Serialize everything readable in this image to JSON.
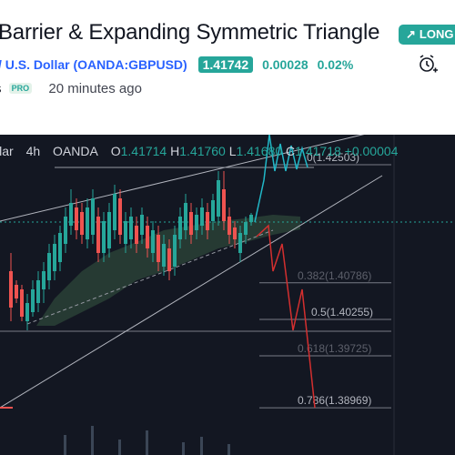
{
  "header": {
    "title": "Barrier & Expanding Symmetric Triangle",
    "badge": "LONG",
    "symbol_text": "/ U.S. Dollar",
    "symbol_code": "(OANDA:GBPUSD)",
    "last_price": "1.41742",
    "change_abs": "0.00028",
    "change_pct": "0.02%",
    "author_suffix": "s",
    "pro_label": "PRO",
    "published": "20 minutes ago"
  },
  "chart": {
    "symbol": "llar",
    "interval": "4h",
    "exchange": "OANDA",
    "o_label": "O",
    "o_val": "1.41714",
    "h_label": "H",
    "h_val": "1.41760",
    "l_label": "L",
    "l_val": "1.41680",
    "c_label": "C",
    "c_val": "1.41718",
    "chg": "+0.00004",
    "fib_levels": [
      {
        "label": "0(1.42503)",
        "value": 1.42503
      },
      {
        "label": "0.382(1.40786)",
        "value": 1.40786
      },
      {
        "label": "0.5(1.40255)",
        "value": 1.40255
      },
      {
        "label": "0.618(1.39725)",
        "value": 1.39725
      },
      {
        "label": "0.786(1.38969)",
        "value": 1.38969
      }
    ],
    "colors": {
      "up": "#26a69a",
      "down": "#ef5350",
      "bg": "#131722",
      "projection_up": "#21b8c8",
      "projection_down": "#d32f2f"
    }
  }
}
